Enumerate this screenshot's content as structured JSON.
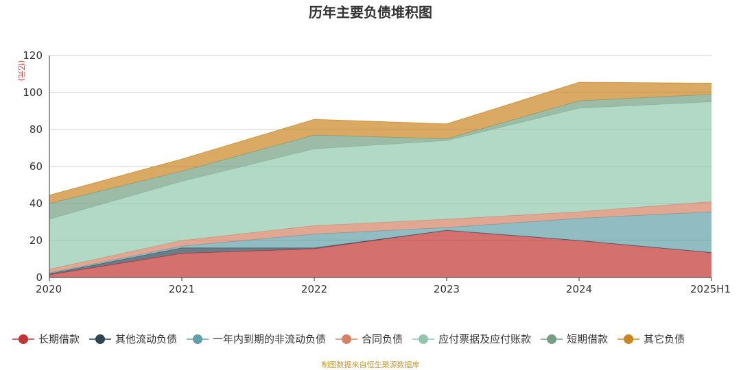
{
  "chart_data": {
    "type": "area",
    "stacked": true,
    "title": "历年主要负债堆积图",
    "ylabel": "(亿元)",
    "source": "制图数据来自恒生聚源数据库",
    "categories": [
      "2020",
      "2021",
      "2022",
      "2023",
      "2024",
      "2025H1"
    ],
    "ylim": [
      0,
      120
    ],
    "yticks": [
      0,
      20,
      40,
      60,
      80,
      100,
      120
    ],
    "grid": true,
    "legend_position": "bottom",
    "series": [
      {
        "name": "长期借款",
        "color": "#c23531",
        "values": [
          1.5,
          13,
          15.5,
          25.5,
          20,
          13.5
        ]
      },
      {
        "name": "其他流动负债",
        "color": "#2f4554",
        "values": [
          0.5,
          3,
          0.5,
          0,
          0,
          0
        ]
      },
      {
        "name": "一年内到期的非流动负债",
        "color": "#61a0a8",
        "values": [
          0.5,
          1,
          7.5,
          1.5,
          12,
          22
        ]
      },
      {
        "name": "合同负债",
        "color": "#d48265",
        "values": [
          2,
          3,
          4.5,
          4.5,
          3.5,
          5.5
        ]
      },
      {
        "name": "应付票据及应付账款",
        "color": "#91c7ae",
        "values": [
          27,
          32,
          41.5,
          42.5,
          56,
          54
        ]
      },
      {
        "name": "短期借款",
        "color": "#749f83",
        "values": [
          8.5,
          5.5,
          7.5,
          1,
          4,
          4
        ]
      },
      {
        "name": "其它负债",
        "color": "#ca8622",
        "values": [
          4.5,
          6.5,
          8.5,
          8,
          10,
          6
        ]
      }
    ]
  }
}
